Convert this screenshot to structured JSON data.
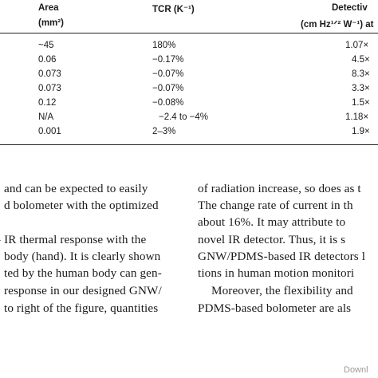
{
  "table": {
    "headers": {
      "area": "Area",
      "area_unit": "(mm²)",
      "tcr": "TCR (K⁻¹)",
      "detectivity": "Detectiv",
      "detectivity_unit": "(cm Hz¹ᐟ² W⁻¹) at"
    },
    "rows": [
      {
        "area": "~45",
        "tcr": "180%",
        "det": "1.07×"
      },
      {
        "area": "0.06",
        "tcr": "−0.17%",
        "det": "4.5×"
      },
      {
        "area": "0.073",
        "tcr": "−0.07%",
        "det": "8.3×"
      },
      {
        "area": "0.073",
        "tcr": "−0.07%",
        "det": "3.3×"
      },
      {
        "area": "0.12",
        "tcr": "−0.08%",
        "det": "1.5×"
      },
      {
        "area": "N/A",
        "tcr": "−2.4 to −4%",
        "det": "1.18×"
      },
      {
        "area": "0.001",
        "tcr": "2–3%",
        "det": "1.9×"
      }
    ]
  },
  "left_column": [
    "and can be expected to easily",
    "d bolometer with the optimized",
    "",
    "IR thermal response with the",
    "body (hand). It is clearly shown",
    "ted by the human body can gen-",
    "response in our designed GNW/",
    "to right of the figure, quantities"
  ],
  "right_column": [
    "of radiation increase, so does as t",
    "The change rate of current in th",
    "about 16%. It may attribute to",
    "novel IR detector. Thus, it is s",
    "GNW/PDMS-based IR detectors l",
    "tions in human motion monitori",
    "Moreover, the flexibility and",
    "PDMS-based bolometer are als"
  ],
  "footer": "Downl"
}
